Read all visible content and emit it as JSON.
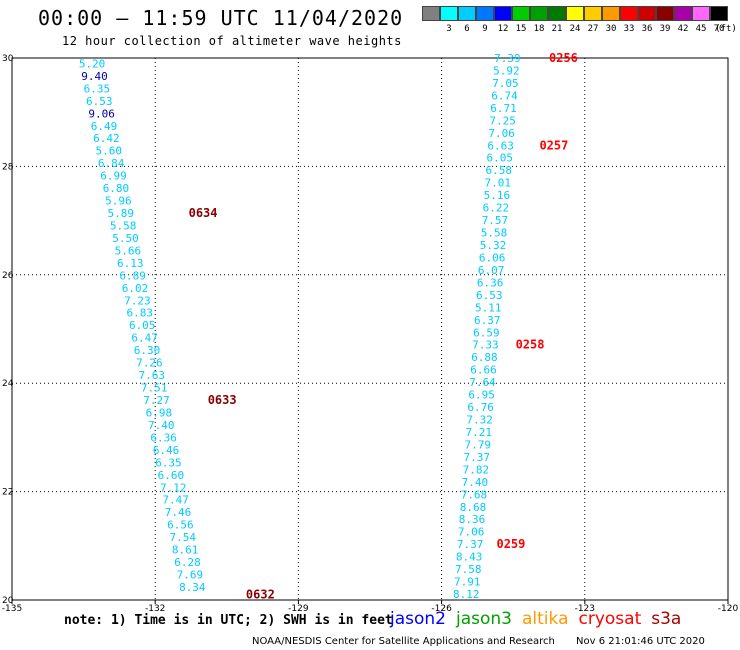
{
  "header": {
    "title": "00:00 – 11:59 UTC 11/04/2020",
    "subtitle": "12 hour collection of altimeter wave heights"
  },
  "legend": {
    "unit": "(ft)",
    "bins": [
      {
        "label": "",
        "color": "#808080"
      },
      {
        "label": "3",
        "color": "#00ffff"
      },
      {
        "label": "6",
        "color": "#00ccff"
      },
      {
        "label": "9",
        "color": "#0077ff"
      },
      {
        "label": "12",
        "color": "#0000ff"
      },
      {
        "label": "15",
        "color": "#00cc00"
      },
      {
        "label": "18",
        "color": "#00a000"
      },
      {
        "label": "21",
        "color": "#007a00"
      },
      {
        "label": "24",
        "color": "#ffff00"
      },
      {
        "label": "27",
        "color": "#ffcc00"
      },
      {
        "label": "30",
        "color": "#ff9900"
      },
      {
        "label": "33",
        "color": "#ff0000"
      },
      {
        "label": "36",
        "color": "#cc0000"
      },
      {
        "label": "39",
        "color": "#880000"
      },
      {
        "label": "42",
        "color": "#aa00aa"
      },
      {
        "label": "45",
        "color": "#ff66ff"
      },
      {
        "label": "70",
        "color": "#000000"
      }
    ]
  },
  "footer": {
    "note": "note: 1) Time is in UTC; 2) SWH is in feet",
    "satellites": [
      {
        "name": "jason2",
        "color": "#0000ff"
      },
      {
        "name": "jason3",
        "color": "#00a000"
      },
      {
        "name": "altika",
        "color": "#ff9900"
      },
      {
        "name": "cryosat",
        "color": "#ff0000"
      },
      {
        "name": "s3a",
        "color": "#aa0000"
      }
    ],
    "credit": "NOAA/NESDIS Center for Satellite Applications and Research",
    "timestamp": "Nov  6 21:01:46 UTC 2020"
  },
  "chart_data": {
    "type": "scatter",
    "x_ticks": [
      "-135",
      "-132",
      "-129",
      "-126",
      "-123",
      "-120"
    ],
    "y_ticks": [
      "30",
      "28",
      "26",
      "24",
      "22",
      "20"
    ],
    "xlim": [
      -135,
      -120
    ],
    "ylim": [
      20,
      30
    ],
    "tracks": [
      {
        "color": "#00ccff",
        "points": [
          {
            "lon": -133.6,
            "lat": 29.9,
            "value": "5.20"
          },
          {
            "lon": -133.55,
            "lat": 29.67,
            "value": "9.40"
          },
          {
            "lon": -133.5,
            "lat": 29.44,
            "value": "6.35"
          },
          {
            "lon": -133.45,
            "lat": 29.21,
            "value": "6.53"
          },
          {
            "lon": -133.4,
            "lat": 28.98,
            "value": "9.06"
          },
          {
            "lon": -133.35,
            "lat": 28.75,
            "value": "6.49"
          },
          {
            "lon": -133.3,
            "lat": 28.52,
            "value": "6.42"
          },
          {
            "lon": -133.25,
            "lat": 28.29,
            "value": "5.60"
          },
          {
            "lon": -133.2,
            "lat": 28.06,
            "value": "6.84"
          },
          {
            "lon": -133.15,
            "lat": 27.83,
            "value": "6.99"
          },
          {
            "lon": -133.1,
            "lat": 27.6,
            "value": "6.80"
          },
          {
            "lon": -133.05,
            "lat": 27.37,
            "value": "5.96"
          },
          {
            "lon": -133.0,
            "lat": 27.14,
            "value": "5.89"
          },
          {
            "lon": -132.95,
            "lat": 26.91,
            "value": "5.58"
          },
          {
            "lon": -132.9,
            "lat": 26.68,
            "value": "5.50"
          },
          {
            "lon": -132.85,
            "lat": 26.45,
            "value": "5.66"
          },
          {
            "lon": -132.8,
            "lat": 26.22,
            "value": "6.13"
          },
          {
            "lon": -132.75,
            "lat": 25.99,
            "value": "6.89"
          },
          {
            "lon": -132.7,
            "lat": 25.76,
            "value": "6.02"
          },
          {
            "lon": -132.65,
            "lat": 25.53,
            "value": "7.23"
          },
          {
            "lon": -132.6,
            "lat": 25.3,
            "value": "6.83"
          },
          {
            "lon": -132.55,
            "lat": 25.07,
            "value": "6.05"
          },
          {
            "lon": -132.5,
            "lat": 24.84,
            "value": "6.47"
          },
          {
            "lon": -132.45,
            "lat": 24.61,
            "value": "6.30"
          },
          {
            "lon": -132.4,
            "lat": 24.38,
            "value": "7.26"
          },
          {
            "lon": -132.35,
            "lat": 24.15,
            "value": "7.63"
          },
          {
            "lon": -132.3,
            "lat": 23.92,
            "value": "7.51"
          },
          {
            "lon": -132.25,
            "lat": 23.69,
            "value": "7.27"
          },
          {
            "lon": -132.2,
            "lat": 23.46,
            "value": "6.98"
          },
          {
            "lon": -132.15,
            "lat": 23.23,
            "value": "7.40"
          },
          {
            "lon": -132.1,
            "lat": 23.0,
            "value": "6.36"
          },
          {
            "lon": -132.05,
            "lat": 22.77,
            "value": "6.46"
          },
          {
            "lon": -132.0,
            "lat": 22.54,
            "value": "6.35"
          },
          {
            "lon": -131.95,
            "lat": 22.31,
            "value": "6.60"
          },
          {
            "lon": -131.9,
            "lat": 22.08,
            "value": "7.12"
          },
          {
            "lon": -131.85,
            "lat": 21.85,
            "value": "7.47"
          },
          {
            "lon": -131.8,
            "lat": 21.62,
            "value": "7.46"
          },
          {
            "lon": -131.75,
            "lat": 21.39,
            "value": "6.56"
          },
          {
            "lon": -131.7,
            "lat": 21.16,
            "value": "7.54"
          },
          {
            "lon": -131.65,
            "lat": 20.93,
            "value": "8.61"
          },
          {
            "lon": -131.6,
            "lat": 20.7,
            "value": "6.28"
          },
          {
            "lon": -131.55,
            "lat": 20.47,
            "value": "7.69"
          },
          {
            "lon": -131.5,
            "lat": 20.24,
            "value": "8.34"
          }
        ],
        "time_labels": [
          {
            "lon": -131.3,
            "lat": 27.14,
            "text": "0634",
            "color": "#880000"
          },
          {
            "lon": -130.9,
            "lat": 23.69,
            "text": "0633",
            "color": "#880000"
          },
          {
            "lon": -130.1,
            "lat": 20.1,
            "text": "0632",
            "color": "#880000"
          }
        ]
      },
      {
        "color": "#00ccff",
        "points": [
          {
            "lon": -124.9,
            "lat": 30.0,
            "value": "7.39"
          },
          {
            "lon": -124.92,
            "lat": 29.77,
            "value": "5.92"
          },
          {
            "lon": -124.94,
            "lat": 29.54,
            "value": "7.05"
          },
          {
            "lon": -124.96,
            "lat": 29.31,
            "value": "6.74"
          },
          {
            "lon": -124.98,
            "lat": 29.08,
            "value": "6.71"
          },
          {
            "lon": -125.0,
            "lat": 28.85,
            "value": "7.25"
          },
          {
            "lon": -125.02,
            "lat": 28.62,
            "value": "7.06"
          },
          {
            "lon": -125.04,
            "lat": 28.39,
            "value": "6.63"
          },
          {
            "lon": -125.06,
            "lat": 28.16,
            "value": "6.05"
          },
          {
            "lon": -125.08,
            "lat": 27.93,
            "value": "6.58"
          },
          {
            "lon": -125.1,
            "lat": 27.7,
            "value": "7.01"
          },
          {
            "lon": -125.12,
            "lat": 27.47,
            "value": "5.16"
          },
          {
            "lon": -125.14,
            "lat": 27.24,
            "value": "6.22"
          },
          {
            "lon": -125.16,
            "lat": 27.01,
            "value": "7.57"
          },
          {
            "lon": -125.18,
            "lat": 26.78,
            "value": "5.58"
          },
          {
            "lon": -125.2,
            "lat": 26.55,
            "value": "5.32"
          },
          {
            "lon": -125.22,
            "lat": 26.32,
            "value": "6.06"
          },
          {
            "lon": -125.24,
            "lat": 26.09,
            "value": "6.07"
          },
          {
            "lon": -125.26,
            "lat": 25.86,
            "value": "6.36"
          },
          {
            "lon": -125.28,
            "lat": 25.63,
            "value": "6.53"
          },
          {
            "lon": -125.3,
            "lat": 25.4,
            "value": "5.11"
          },
          {
            "lon": -125.32,
            "lat": 25.17,
            "value": "6.37"
          },
          {
            "lon": -125.34,
            "lat": 24.94,
            "value": "6.59"
          },
          {
            "lon": -125.36,
            "lat": 24.71,
            "value": "7.33"
          },
          {
            "lon": -125.38,
            "lat": 24.48,
            "value": "6.88"
          },
          {
            "lon": -125.4,
            "lat": 24.25,
            "value": "6.66"
          },
          {
            "lon": -125.42,
            "lat": 24.02,
            "value": "7.64"
          },
          {
            "lon": -125.44,
            "lat": 23.79,
            "value": "6.95"
          },
          {
            "lon": -125.46,
            "lat": 23.56,
            "value": "6.76"
          },
          {
            "lon": -125.48,
            "lat": 23.33,
            "value": "7.32"
          },
          {
            "lon": -125.5,
            "lat": 23.1,
            "value": "7.21"
          },
          {
            "lon": -125.52,
            "lat": 22.87,
            "value": "7.79"
          },
          {
            "lon": -125.54,
            "lat": 22.64,
            "value": "7.37"
          },
          {
            "lon": -125.56,
            "lat": 22.41,
            "value": "7.82"
          },
          {
            "lon": -125.58,
            "lat": 22.18,
            "value": "7.40"
          },
          {
            "lon": -125.6,
            "lat": 21.95,
            "value": "7.68"
          },
          {
            "lon": -125.62,
            "lat": 21.72,
            "value": "8.68"
          },
          {
            "lon": -125.64,
            "lat": 21.49,
            "value": "8.36"
          },
          {
            "lon": -125.66,
            "lat": 21.26,
            "value": "7.06"
          },
          {
            "lon": -125.68,
            "lat": 21.03,
            "value": "7.37"
          },
          {
            "lon": -125.7,
            "lat": 20.8,
            "value": "8.43"
          },
          {
            "lon": -125.72,
            "lat": 20.57,
            "value": "7.58"
          },
          {
            "lon": -125.74,
            "lat": 20.34,
            "value": "7.91"
          },
          {
            "lon": -125.76,
            "lat": 20.11,
            "value": "8.12"
          }
        ],
        "time_labels": [
          {
            "lon": -123.75,
            "lat": 30.0,
            "text": "0256",
            "color": "#ff0000"
          },
          {
            "lon": -123.95,
            "lat": 28.39,
            "text": "0257",
            "color": "#ff0000"
          },
          {
            "lon": -124.45,
            "lat": 24.71,
            "text": "0258",
            "color": "#ff0000"
          },
          {
            "lon": -124.85,
            "lat": 21.03,
            "text": "0259",
            "color": "#ff0000"
          }
        ]
      }
    ]
  }
}
